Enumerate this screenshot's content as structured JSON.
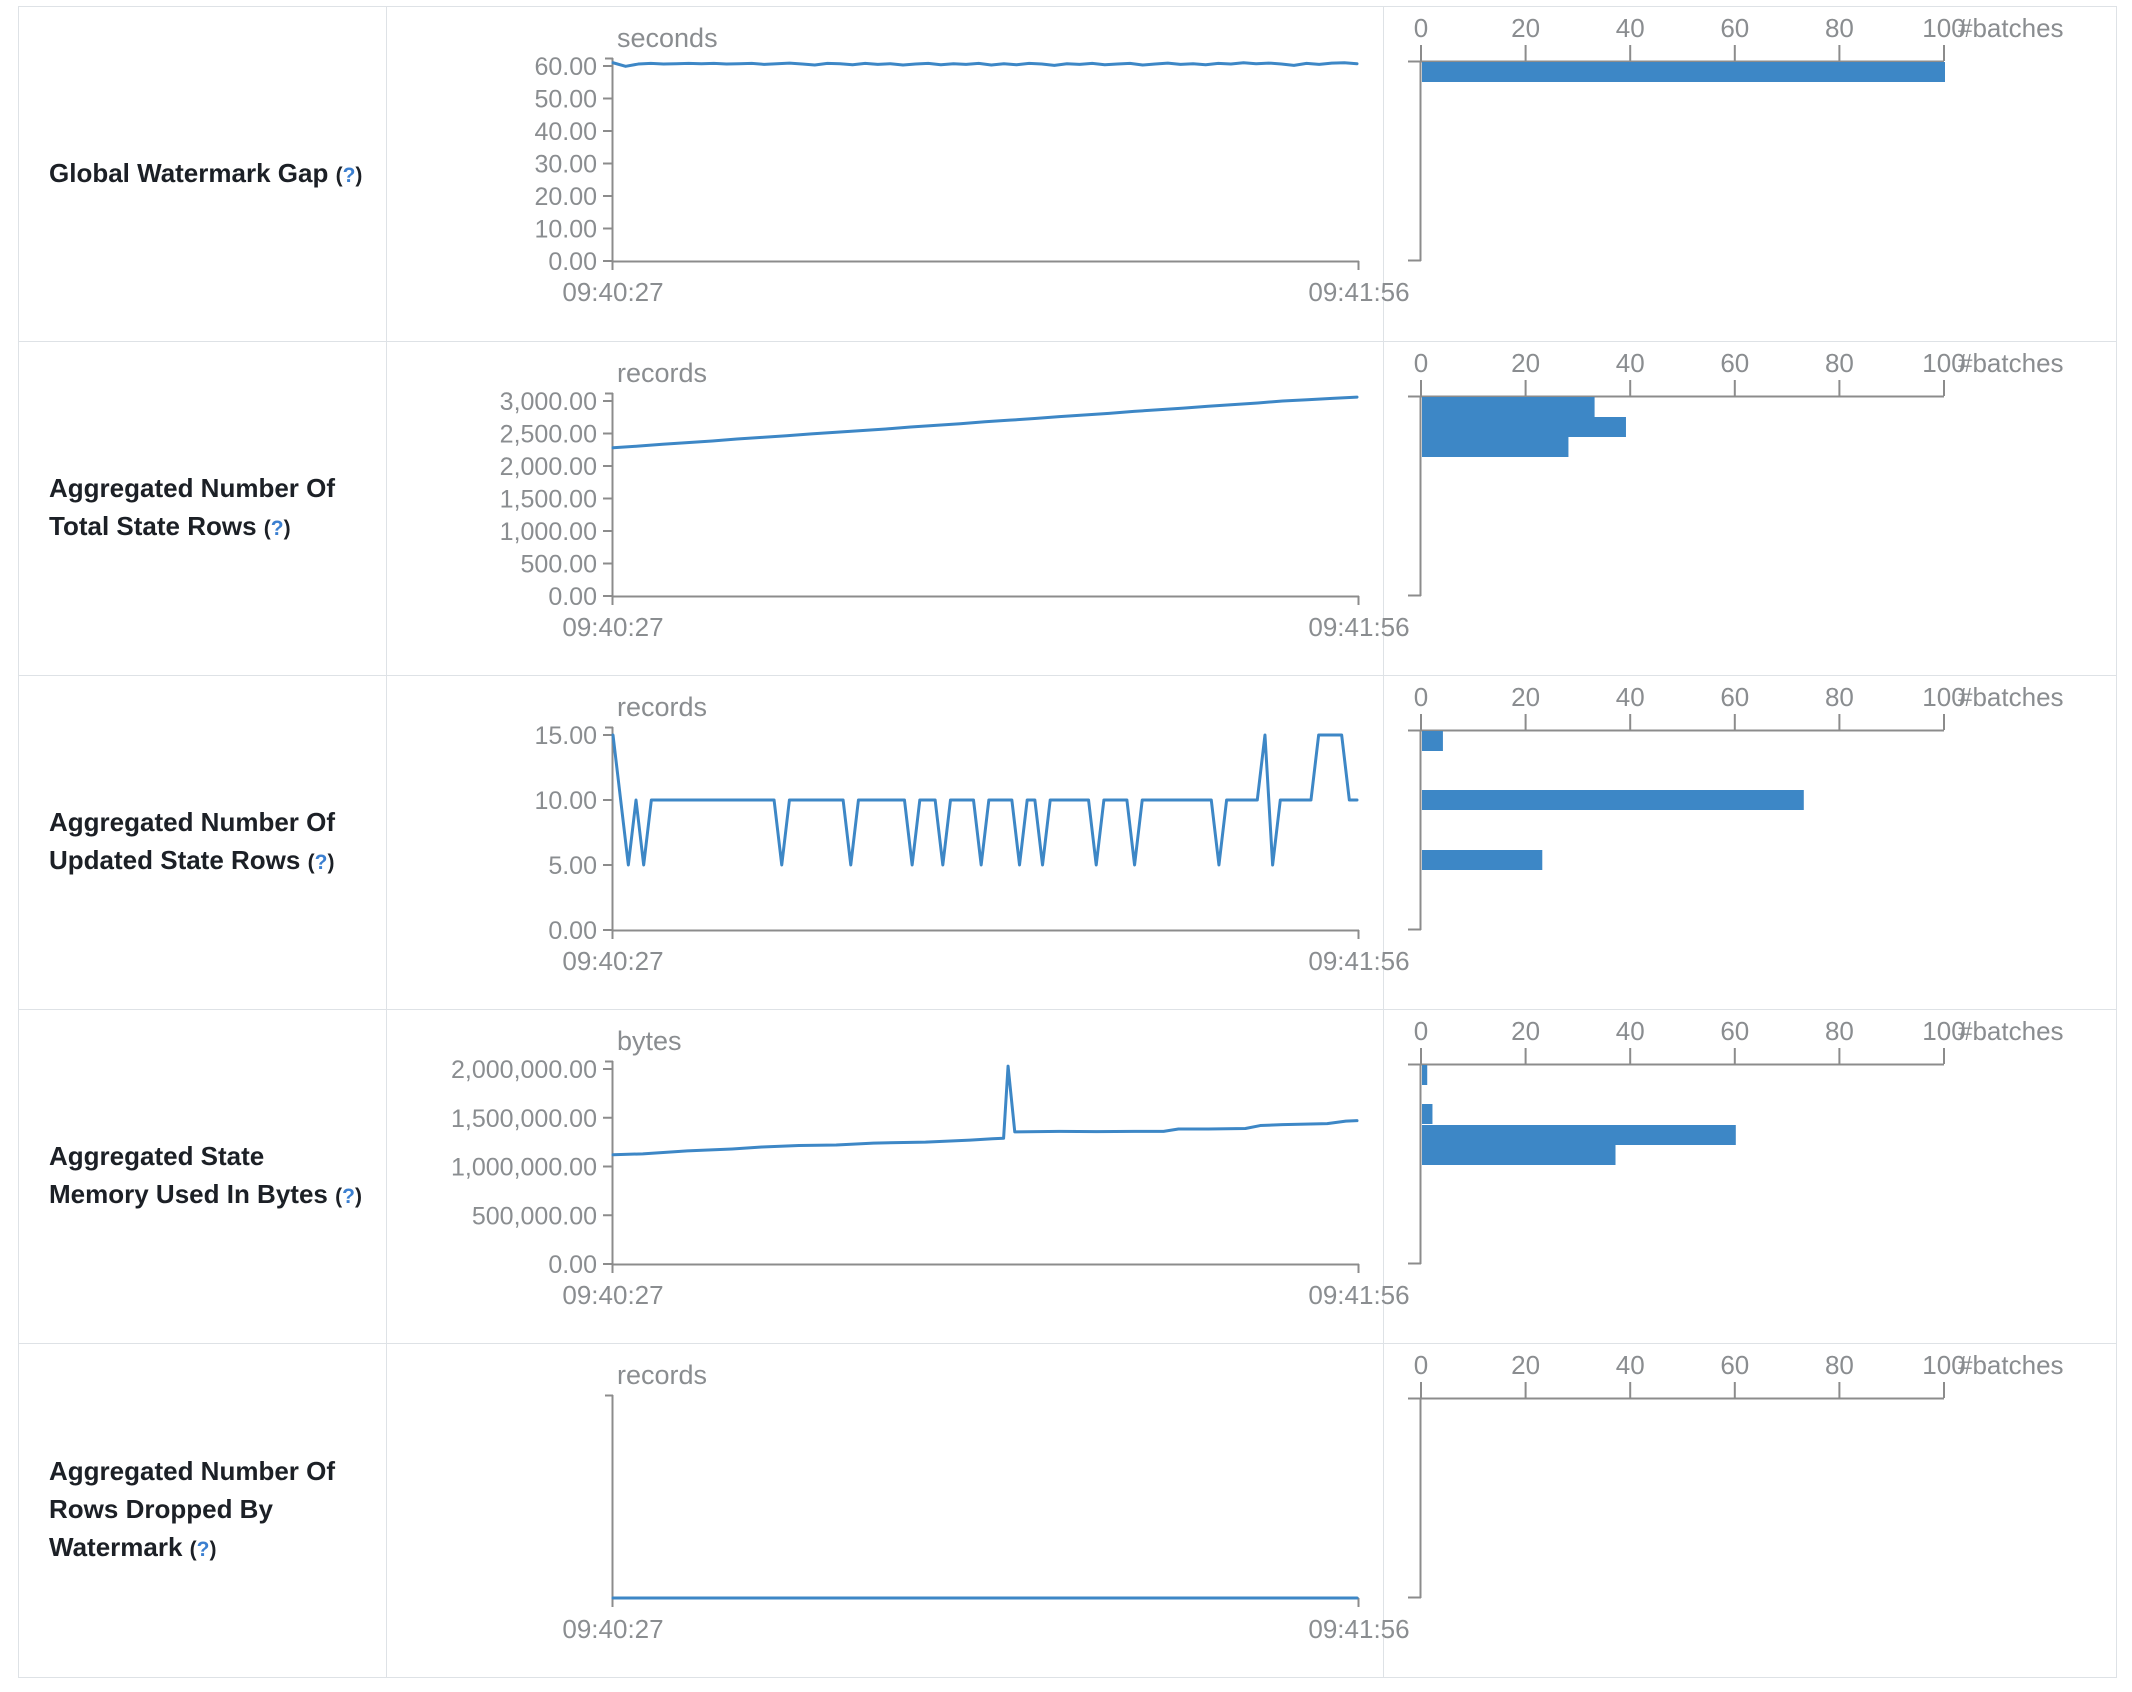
{
  "colors": {
    "accent_blue": "#3d87c6",
    "axis_gray": "#8c8c8c",
    "tick_text_gray": "#8a8d90",
    "label_text": "#1c2026",
    "help_blue": "#3b7fd0",
    "border_gray": "#dee2e6"
  },
  "table": {
    "rows": [
      {
        "label": "Global Watermark Gap",
        "help": {
          "open": "(",
          "q": "?",
          "close": ")"
        }
      },
      {
        "label": "Aggregated Number Of Total State Rows",
        "help": {
          "open": "(",
          "q": "?",
          "close": ")"
        }
      },
      {
        "label": "Aggregated Number Of Updated State Rows",
        "help": {
          "open": "(",
          "q": "?",
          "close": ")"
        }
      },
      {
        "label": "Aggregated State Memory Used In Bytes",
        "help": {
          "open": "(",
          "q": "?",
          "close": ")"
        }
      },
      {
        "label": "Aggregated Number Of Rows Dropped By Watermark",
        "help": {
          "open": "(",
          "q": "?",
          "close": ")"
        }
      }
    ]
  },
  "chart_data": [
    {
      "metric": "Global Watermark Gap",
      "timeline": {
        "type": "line",
        "unit": "seconds",
        "x_start": "09:40:27",
        "x_end": "09:41:56",
        "y_ticks": [
          "60.00",
          "50.00",
          "40.00",
          "30.00",
          "20.00",
          "10.00",
          "0.00"
        ],
        "y_max": 60,
        "values": [
          61,
          59.9,
          60.6,
          60.8,
          60.6,
          60.7,
          60.8,
          60.7,
          60.8,
          60.6,
          60.7,
          60.8,
          60.5,
          60.7,
          60.9,
          60.6,
          60.3,
          60.8,
          60.7,
          60.4,
          60.8,
          60.5,
          60.7,
          60.3,
          60.6,
          60.8,
          60.4,
          60.7,
          60.5,
          60.8,
          60.3,
          60.7,
          60.4,
          60.8,
          60.6,
          60.2,
          60.7,
          60.5,
          60.8,
          60.4,
          60.6,
          60.8,
          60.3,
          60.6,
          60.9,
          60.5,
          60.7,
          60.4,
          60.8,
          60.6,
          61,
          60.7,
          60.9,
          60.6,
          60.2,
          60.8,
          60.5,
          60.9,
          61,
          60.7
        ]
      },
      "histogram": {
        "type": "bar",
        "axis_ticks": [
          "0",
          "20",
          "40",
          "60",
          "80",
          "100"
        ],
        "axis_label": "#batches",
        "x_max": 100,
        "bars": [
          {
            "offset": 0,
            "count": 100
          }
        ]
      }
    },
    {
      "metric": "Aggregated Number Of Total State Rows",
      "timeline": {
        "type": "line",
        "unit": "records",
        "x_start": "09:40:27",
        "x_end": "09:41:56",
        "y_ticks": [
          "3,000.00",
          "2,500.00",
          "2,000.00",
          "1,500.00",
          "1,000.00",
          "500.00",
          "0.00"
        ],
        "y_max": 3000,
        "values": [
          2280,
          2305,
          2335,
          2360,
          2385,
          2415,
          2440,
          2465,
          2495,
          2520,
          2545,
          2570,
          2600,
          2625,
          2650,
          2680,
          2705,
          2730,
          2760,
          2785,
          2810,
          2840,
          2865,
          2890,
          2920,
          2945,
          2970,
          3000,
          3020,
          3040,
          3060
        ]
      },
      "histogram": {
        "type": "bar",
        "axis_ticks": [
          "0",
          "20",
          "40",
          "60",
          "80",
          "100"
        ],
        "axis_label": "#batches",
        "x_max": 100,
        "bars": [
          {
            "offset": 0,
            "count": 33
          },
          {
            "offset": 20,
            "count": 39
          },
          {
            "offset": 40,
            "count": 28
          }
        ]
      }
    },
    {
      "metric": "Aggregated Number Of Updated State Rows",
      "timeline": {
        "type": "line",
        "unit": "records",
        "x_start": "09:40:27",
        "x_end": "09:41:56",
        "y_ticks": [
          "15.00",
          "10.00",
          "5.00",
          "0.00"
        ],
        "y_max": 15,
        "values": [
          15,
          10,
          5,
          10,
          5,
          10,
          10,
          10,
          10,
          10,
          10,
          10,
          10,
          10,
          10,
          10,
          10,
          10,
          10,
          10,
          10,
          10,
          5,
          10,
          10,
          10,
          10,
          10,
          10,
          10,
          10,
          5,
          10,
          10,
          10,
          10,
          10,
          10,
          10,
          5,
          10,
          10,
          10,
          5,
          10,
          10,
          10,
          10,
          5,
          10,
          10,
          10,
          10,
          5,
          10,
          10,
          5,
          10,
          10,
          10,
          10,
          10,
          10,
          5,
          10,
          10,
          10,
          10,
          5,
          10,
          10,
          10,
          10,
          10,
          10,
          10,
          10,
          10,
          10,
          5,
          10,
          10,
          10,
          10,
          10,
          15,
          5,
          10,
          10,
          10,
          10,
          10,
          15,
          15,
          15,
          15,
          10,
          10
        ]
      },
      "histogram": {
        "type": "bar",
        "axis_ticks": [
          "0",
          "20",
          "40",
          "60",
          "80",
          "100"
        ],
        "axis_label": "#batches",
        "x_max": 100,
        "bars": [
          {
            "offset": 0,
            "count": 4
          },
          {
            "offset": 59,
            "count": 73
          },
          {
            "offset": 119,
            "count": 23
          }
        ]
      }
    },
    {
      "metric": "Aggregated State Memory Used In Bytes",
      "timeline": {
        "type": "line",
        "unit": "bytes",
        "x_start": "09:40:27",
        "x_end": "09:41:56",
        "y_ticks": [
          "2,000,000.00",
          "1,500,000.00",
          "1,000,000.00",
          "500,000.00",
          "0.00"
        ],
        "y_max": 2000000,
        "values_xy": [
          [
            0,
            1120000
          ],
          [
            0.04,
            1130000
          ],
          [
            0.1,
            1160000
          ],
          [
            0.16,
            1180000
          ],
          [
            0.2,
            1200000
          ],
          [
            0.25,
            1215000
          ],
          [
            0.3,
            1220000
          ],
          [
            0.35,
            1240000
          ],
          [
            0.42,
            1250000
          ],
          [
            0.48,
            1270000
          ],
          [
            0.51,
            1285000
          ],
          [
            0.525,
            1290000
          ],
          [
            0.531,
            2030000
          ],
          [
            0.54,
            1355000
          ],
          [
            0.6,
            1360000
          ],
          [
            0.65,
            1358000
          ],
          [
            0.7,
            1360000
          ],
          [
            0.74,
            1360000
          ],
          [
            0.76,
            1385000
          ],
          [
            0.8,
            1385000
          ],
          [
            0.85,
            1390000
          ],
          [
            0.87,
            1420000
          ],
          [
            0.9,
            1430000
          ],
          [
            0.93,
            1435000
          ],
          [
            0.96,
            1440000
          ],
          [
            0.985,
            1465000
          ],
          [
            1,
            1470000
          ]
        ]
      },
      "histogram": {
        "type": "bar",
        "axis_ticks": [
          "0",
          "20",
          "40",
          "60",
          "80",
          "100"
        ],
        "axis_label": "#batches",
        "x_max": 100,
        "bars": [
          {
            "offset": 0,
            "count": 1
          },
          {
            "offset": 39,
            "count": 2
          },
          {
            "offset": 60,
            "count": 60
          },
          {
            "offset": 80,
            "count": 37
          }
        ]
      }
    },
    {
      "metric": "Aggregated Number Of Rows Dropped By Watermark",
      "timeline": {
        "type": "line",
        "unit": "records",
        "x_start": "09:40:27",
        "x_end": "09:41:56",
        "y_ticks": [],
        "y_max": null,
        "values": [
          0,
          0
        ]
      },
      "histogram": {
        "type": "bar",
        "axis_ticks": [
          "0",
          "20",
          "40",
          "60",
          "80",
          "100"
        ],
        "axis_label": "#batches",
        "x_max": 100,
        "bars": []
      }
    }
  ]
}
